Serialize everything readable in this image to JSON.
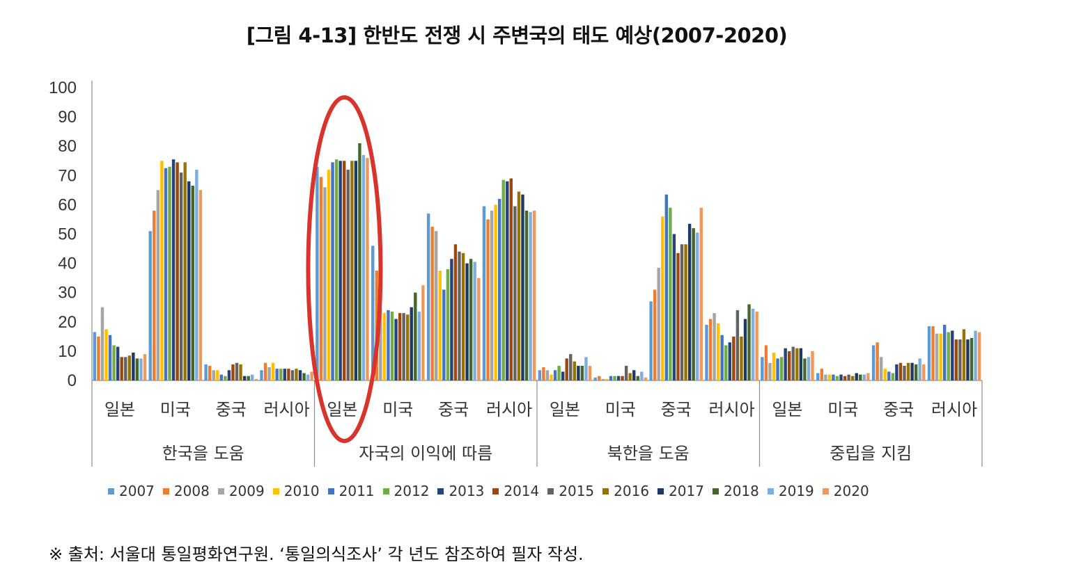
{
  "chart_data": {
    "type": "bar",
    "title": "[그림 4-13] 한반도 전쟁 시 주변국의 태도 예상(2007-2020)",
    "ylim": [
      0,
      100
    ],
    "yticks": [
      "0",
      "10",
      "20",
      "30",
      "40",
      "50",
      "60",
      "70",
      "80",
      "90",
      "100"
    ],
    "legend_position": "bottom",
    "grid": false,
    "groups": [
      {
        "label": "한국을 도움",
        "categories": [
          "일본",
          "미국",
          "중국",
          "러시아"
        ]
      },
      {
        "label": "자국의 이익에  따름",
        "categories": [
          "일본",
          "미국",
          "중국",
          "러시아"
        ]
      },
      {
        "label": "북한을 도움",
        "categories": [
          "일본",
          "미국",
          "중국",
          "러시아"
        ]
      },
      {
        "label": "중립을 지킴",
        "categories": [
          "일본",
          "미국",
          "중국",
          "러시아"
        ]
      }
    ],
    "series": [
      {
        "name": "2007",
        "color": "#5b9bd5",
        "values": [
          16.5,
          51,
          5.5,
          3.5,
          73,
          46,
          57,
          59.5,
          3.5,
          1,
          27,
          19,
          8,
          2.5
        ]
      },
      {
        "name": "2008",
        "color": "#ed7d31",
        "values": [
          15,
          58,
          5,
          6,
          69.5,
          37.5,
          52.5,
          55,
          4.5,
          1.5,
          31,
          21,
          12,
          4
        ]
      },
      {
        "name": "2009",
        "color": "#a5a5a5",
        "values": [
          25,
          65,
          3.5,
          4.5,
          66,
          24.5,
          51,
          58,
          3.5,
          0.5,
          38.5,
          23,
          6,
          2
        ]
      },
      {
        "name": "2010",
        "color": "#ffc000",
        "values": [
          17.5,
          75,
          3.5,
          6,
          72,
          23,
          37.5,
          60,
          2,
          0.5,
          56,
          19.5,
          9.5,
          2
        ]
      },
      {
        "name": "2011",
        "color": "#4472c4",
        "values": [
          15.5,
          72.5,
          2,
          4,
          74.5,
          24,
          31,
          62,
          3.5,
          1.5,
          63.5,
          15.5,
          7.5,
          2
        ]
      },
      {
        "name": "2012",
        "color": "#70ad47",
        "values": [
          12,
          73,
          1.5,
          4,
          75.5,
          23.5,
          38,
          68.5,
          5,
          1.5,
          59,
          12,
          8,
          1.5
        ]
      },
      {
        "name": "2013",
        "color": "#264478",
        "values": [
          11.5,
          75.5,
          3.5,
          4,
          75,
          21,
          41.5,
          68,
          3,
          1.5,
          50,
          13,
          11,
          2
        ]
      },
      {
        "name": "2014",
        "color": "#9e480e",
        "values": [
          8,
          74.5,
          5.5,
          4,
          75,
          23,
          46.5,
          69,
          7.5,
          1.5,
          43.5,
          15,
          10,
          1.5
        ]
      },
      {
        "name": "2015",
        "color": "#636363",
        "values": [
          8,
          71,
          6,
          3.5,
          72,
          23,
          44,
          59.5,
          9,
          5,
          46.5,
          24,
          11.5,
          2
        ]
      },
      {
        "name": "2016",
        "color": "#997300",
        "values": [
          8.5,
          74.5,
          5.5,
          4,
          75,
          22.5,
          43.5,
          64.5,
          6.5,
          2.5,
          46.5,
          15,
          11,
          1.5
        ]
      },
      {
        "name": "2017",
        "color": "#1f3864",
        "values": [
          9.5,
          68,
          1.5,
          3.5,
          75,
          25,
          40,
          63.5,
          5,
          3.5,
          53.5,
          21,
          11,
          2.5
        ]
      },
      {
        "name": "2018",
        "color": "#43682b",
        "values": [
          7.5,
          66.5,
          1.5,
          2.5,
          81,
          30,
          41.5,
          58,
          5,
          1.5,
          52,
          26,
          7.5,
          2
        ]
      },
      {
        "name": "2019",
        "color": "#7cafdd",
        "values": [
          7.5,
          72,
          2,
          2,
          77,
          23.5,
          40.5,
          57.5,
          8,
          3,
          50.5,
          24.5,
          8,
          2
        ]
      },
      {
        "name": "2020",
        "color": "#f1975a",
        "values": [
          9,
          65,
          0.5,
          3,
          76,
          32.5,
          35,
          58,
          5,
          1,
          59,
          23.5,
          10,
          2.5
        ]
      }
    ],
    "extra_values_note": "",
    "series_tail": {
      "2007": [
        12,
        18.5
      ],
      "2008": [
        13,
        18.5
      ],
      "2009": [
        8,
        16
      ],
      "2010": [
        4,
        16
      ],
      "2011": [
        3,
        19
      ],
      "2012": [
        2.5,
        16.5
      ],
      "2013": [
        5.5,
        17
      ],
      "2014": [
        6,
        14
      ],
      "2015": [
        5,
        14
      ],
      "2016": [
        6,
        17.5
      ],
      "2017": [
        6,
        14
      ],
      "2018": [
        5.5,
        14.5
      ],
      "2019": [
        7.5,
        17
      ],
      "2020": [
        5.5,
        16.5
      ]
    },
    "annotation": {
      "shape": "ellipse",
      "color": "#d9342b",
      "target": "자국의 이익에  따름 / 일본"
    }
  },
  "source_note": "※ 출처: 서울대 통일평화연구원. ‘통일의식조사’ 각 년도 참조하여 필자 작성."
}
